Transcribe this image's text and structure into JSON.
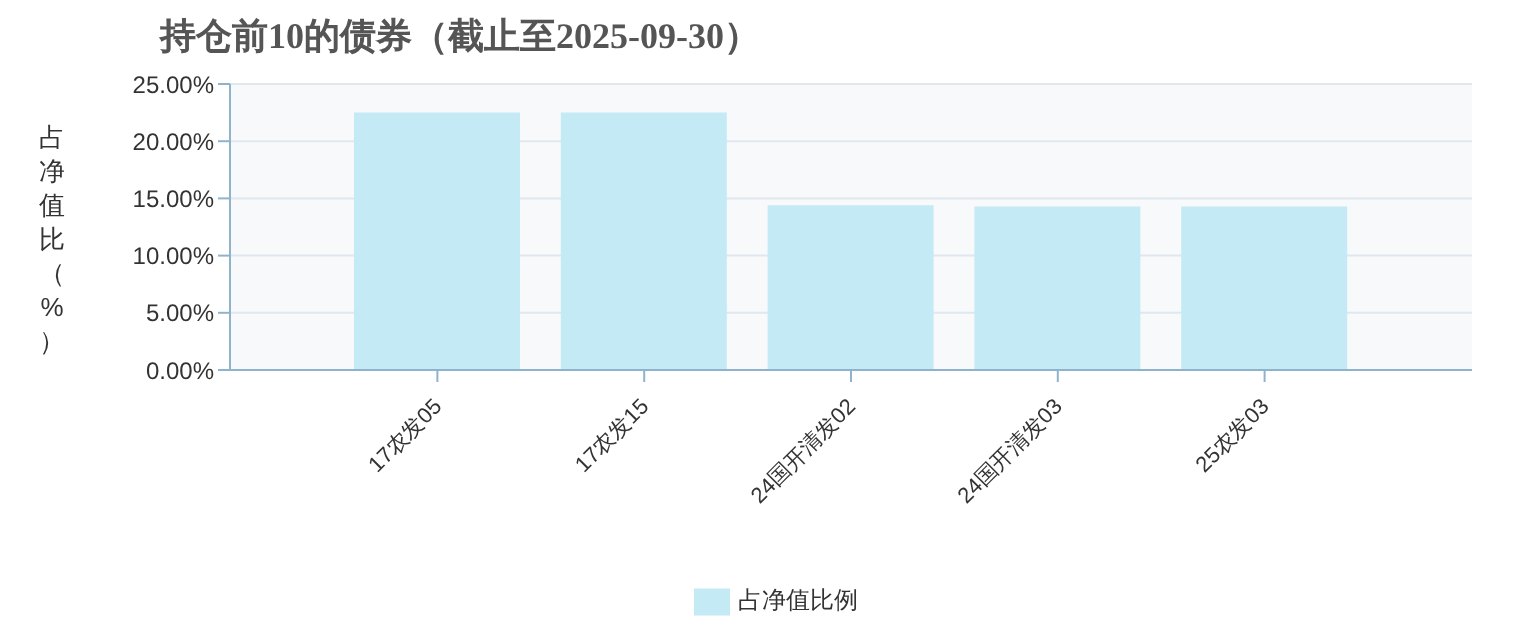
{
  "chart_data": {
    "type": "bar",
    "title": "持仓前10的债券（截止至2025-09-30）",
    "ylabel": "占净值比（%）",
    "categories": [
      "17农发05",
      "17农发15",
      "24国开清发02",
      "24国开清发03",
      "25农发03"
    ],
    "series": [
      {
        "name": "占净值比例",
        "color": "#c4eaf6",
        "values": [
          22.5,
          22.5,
          14.4,
          14.3,
          14.3
        ]
      }
    ],
    "ylim": [
      0,
      25
    ],
    "yticks": [
      {
        "value": 0,
        "label": "0.00%"
      },
      {
        "value": 5,
        "label": "5.00%"
      },
      {
        "value": 10,
        "label": "10.00%"
      },
      {
        "value": 15,
        "label": "15.00%"
      },
      {
        "value": 20,
        "label": "20.00%"
      },
      {
        "value": 25,
        "label": "25.00%"
      }
    ],
    "grid": "y",
    "legend": "bottom"
  }
}
